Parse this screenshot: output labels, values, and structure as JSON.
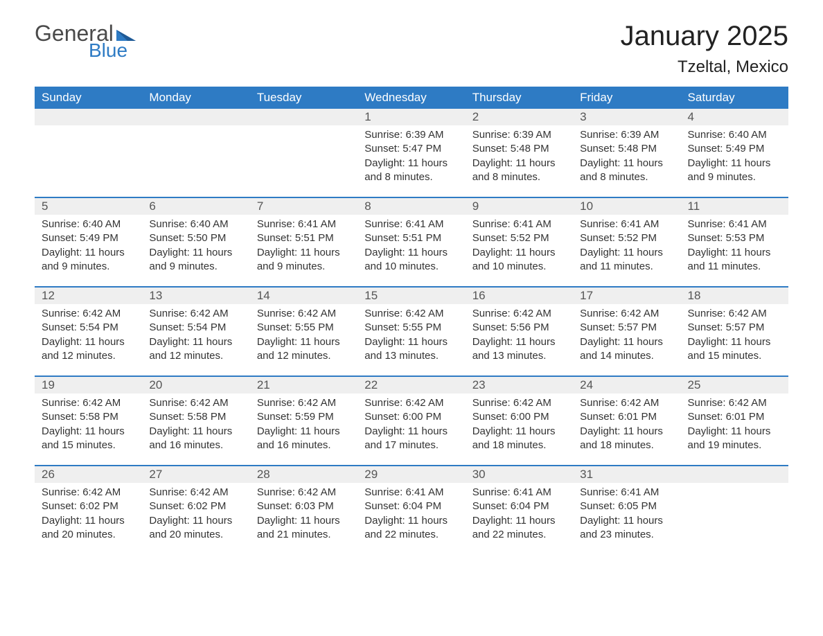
{
  "brand": {
    "word1": "General",
    "word2": "Blue",
    "color_word1": "#4a4a4a",
    "color_word2": "#2e7bc4",
    "accent_color": "#2e7bc4"
  },
  "title": "January 2025",
  "location": "Tzeltal, Mexico",
  "header_bg": "#2e7bc4",
  "header_text_color": "#ffffff",
  "daynum_bg": "#efefef",
  "daynum_border_top": "#2e7bc4",
  "body_text_color": "#333333",
  "font_family": "Arial",
  "title_fontsize_pt": 30,
  "location_fontsize_pt": 18,
  "header_fontsize_pt": 13,
  "cell_fontsize_pt": 11,
  "day_headers": [
    "Sunday",
    "Monday",
    "Tuesday",
    "Wednesday",
    "Thursday",
    "Friday",
    "Saturday"
  ],
  "weeks": [
    [
      null,
      null,
      null,
      {
        "n": "1",
        "sunrise": "6:39 AM",
        "sunset": "5:47 PM",
        "daylight": "11 hours and 8 minutes."
      },
      {
        "n": "2",
        "sunrise": "6:39 AM",
        "sunset": "5:48 PM",
        "daylight": "11 hours and 8 minutes."
      },
      {
        "n": "3",
        "sunrise": "6:39 AM",
        "sunset": "5:48 PM",
        "daylight": "11 hours and 8 minutes."
      },
      {
        "n": "4",
        "sunrise": "6:40 AM",
        "sunset": "5:49 PM",
        "daylight": "11 hours and 9 minutes."
      }
    ],
    [
      {
        "n": "5",
        "sunrise": "6:40 AM",
        "sunset": "5:49 PM",
        "daylight": "11 hours and 9 minutes."
      },
      {
        "n": "6",
        "sunrise": "6:40 AM",
        "sunset": "5:50 PM",
        "daylight": "11 hours and 9 minutes."
      },
      {
        "n": "7",
        "sunrise": "6:41 AM",
        "sunset": "5:51 PM",
        "daylight": "11 hours and 9 minutes."
      },
      {
        "n": "8",
        "sunrise": "6:41 AM",
        "sunset": "5:51 PM",
        "daylight": "11 hours and 10 minutes."
      },
      {
        "n": "9",
        "sunrise": "6:41 AM",
        "sunset": "5:52 PM",
        "daylight": "11 hours and 10 minutes."
      },
      {
        "n": "10",
        "sunrise": "6:41 AM",
        "sunset": "5:52 PM",
        "daylight": "11 hours and 11 minutes."
      },
      {
        "n": "11",
        "sunrise": "6:41 AM",
        "sunset": "5:53 PM",
        "daylight": "11 hours and 11 minutes."
      }
    ],
    [
      {
        "n": "12",
        "sunrise": "6:42 AM",
        "sunset": "5:54 PM",
        "daylight": "11 hours and 12 minutes."
      },
      {
        "n": "13",
        "sunrise": "6:42 AM",
        "sunset": "5:54 PM",
        "daylight": "11 hours and 12 minutes."
      },
      {
        "n": "14",
        "sunrise": "6:42 AM",
        "sunset": "5:55 PM",
        "daylight": "11 hours and 12 minutes."
      },
      {
        "n": "15",
        "sunrise": "6:42 AM",
        "sunset": "5:55 PM",
        "daylight": "11 hours and 13 minutes."
      },
      {
        "n": "16",
        "sunrise": "6:42 AM",
        "sunset": "5:56 PM",
        "daylight": "11 hours and 13 minutes."
      },
      {
        "n": "17",
        "sunrise": "6:42 AM",
        "sunset": "5:57 PM",
        "daylight": "11 hours and 14 minutes."
      },
      {
        "n": "18",
        "sunrise": "6:42 AM",
        "sunset": "5:57 PM",
        "daylight": "11 hours and 15 minutes."
      }
    ],
    [
      {
        "n": "19",
        "sunrise": "6:42 AM",
        "sunset": "5:58 PM",
        "daylight": "11 hours and 15 minutes."
      },
      {
        "n": "20",
        "sunrise": "6:42 AM",
        "sunset": "5:58 PM",
        "daylight": "11 hours and 16 minutes."
      },
      {
        "n": "21",
        "sunrise": "6:42 AM",
        "sunset": "5:59 PM",
        "daylight": "11 hours and 16 minutes."
      },
      {
        "n": "22",
        "sunrise": "6:42 AM",
        "sunset": "6:00 PM",
        "daylight": "11 hours and 17 minutes."
      },
      {
        "n": "23",
        "sunrise": "6:42 AM",
        "sunset": "6:00 PM",
        "daylight": "11 hours and 18 minutes."
      },
      {
        "n": "24",
        "sunrise": "6:42 AM",
        "sunset": "6:01 PM",
        "daylight": "11 hours and 18 minutes."
      },
      {
        "n": "25",
        "sunrise": "6:42 AM",
        "sunset": "6:01 PM",
        "daylight": "11 hours and 19 minutes."
      }
    ],
    [
      {
        "n": "26",
        "sunrise": "6:42 AM",
        "sunset": "6:02 PM",
        "daylight": "11 hours and 20 minutes."
      },
      {
        "n": "27",
        "sunrise": "6:42 AM",
        "sunset": "6:02 PM",
        "daylight": "11 hours and 20 minutes."
      },
      {
        "n": "28",
        "sunrise": "6:42 AM",
        "sunset": "6:03 PM",
        "daylight": "11 hours and 21 minutes."
      },
      {
        "n": "29",
        "sunrise": "6:41 AM",
        "sunset": "6:04 PM",
        "daylight": "11 hours and 22 minutes."
      },
      {
        "n": "30",
        "sunrise": "6:41 AM",
        "sunset": "6:04 PM",
        "daylight": "11 hours and 22 minutes."
      },
      {
        "n": "31",
        "sunrise": "6:41 AM",
        "sunset": "6:05 PM",
        "daylight": "11 hours and 23 minutes."
      },
      null
    ]
  ],
  "labels": {
    "sunrise": "Sunrise:",
    "sunset": "Sunset:",
    "daylight": "Daylight:"
  }
}
